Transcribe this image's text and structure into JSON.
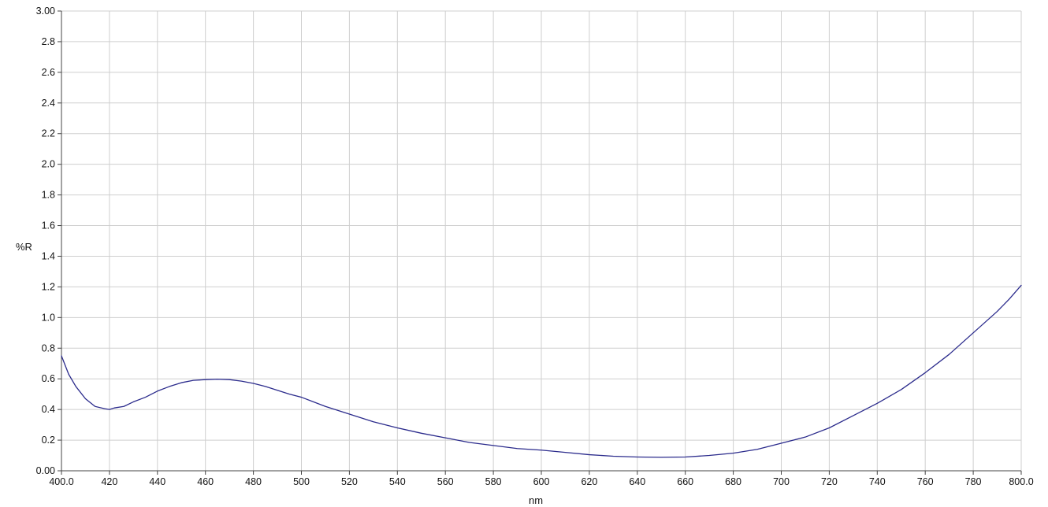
{
  "chart_data": {
    "type": "line",
    "title": "",
    "xlabel": "nm",
    "ylabel": "%R",
    "xlim": [
      400.0,
      800.0
    ],
    "ylim": [
      0.0,
      3.0
    ],
    "x_ticks": [
      "400.0",
      "420",
      "440",
      "460",
      "480",
      "500",
      "520",
      "540",
      "560",
      "580",
      "600",
      "620",
      "640",
      "660",
      "680",
      "700",
      "720",
      "740",
      "760",
      "780",
      "800.0"
    ],
    "y_ticks": [
      "0.00",
      "0.2",
      "0.4",
      "0.6",
      "0.8",
      "1.0",
      "1.2",
      "1.4",
      "1.6",
      "1.8",
      "2.0",
      "2.2",
      "2.4",
      "2.6",
      "2.8",
      "3.00"
    ],
    "grid": true,
    "legend": "none",
    "series": [
      {
        "color": "#2b2b8c",
        "x": [
          400,
          403,
          406,
          410,
          414,
          418,
          420,
          422,
          426,
          430,
          435,
          440,
          445,
          450,
          455,
          460,
          465,
          470,
          475,
          480,
          485,
          490,
          495,
          500,
          510,
          520,
          530,
          540,
          550,
          560,
          570,
          580,
          590,
          600,
          610,
          620,
          630,
          640,
          650,
          660,
          670,
          680,
          690,
          700,
          710,
          720,
          730,
          740,
          750,
          760,
          770,
          780,
          790,
          795,
          800
        ],
        "y": [
          0.75,
          0.63,
          0.55,
          0.47,
          0.42,
          0.405,
          0.4,
          0.41,
          0.42,
          0.45,
          0.48,
          0.52,
          0.55,
          0.575,
          0.59,
          0.595,
          0.598,
          0.595,
          0.585,
          0.57,
          0.55,
          0.525,
          0.5,
          0.48,
          0.42,
          0.37,
          0.32,
          0.28,
          0.245,
          0.215,
          0.185,
          0.165,
          0.145,
          0.135,
          0.12,
          0.105,
          0.095,
          0.09,
          0.088,
          0.09,
          0.1,
          0.115,
          0.14,
          0.18,
          0.22,
          0.28,
          0.36,
          0.44,
          0.53,
          0.64,
          0.76,
          0.9,
          1.04,
          1.12,
          1.21
        ]
      }
    ]
  }
}
